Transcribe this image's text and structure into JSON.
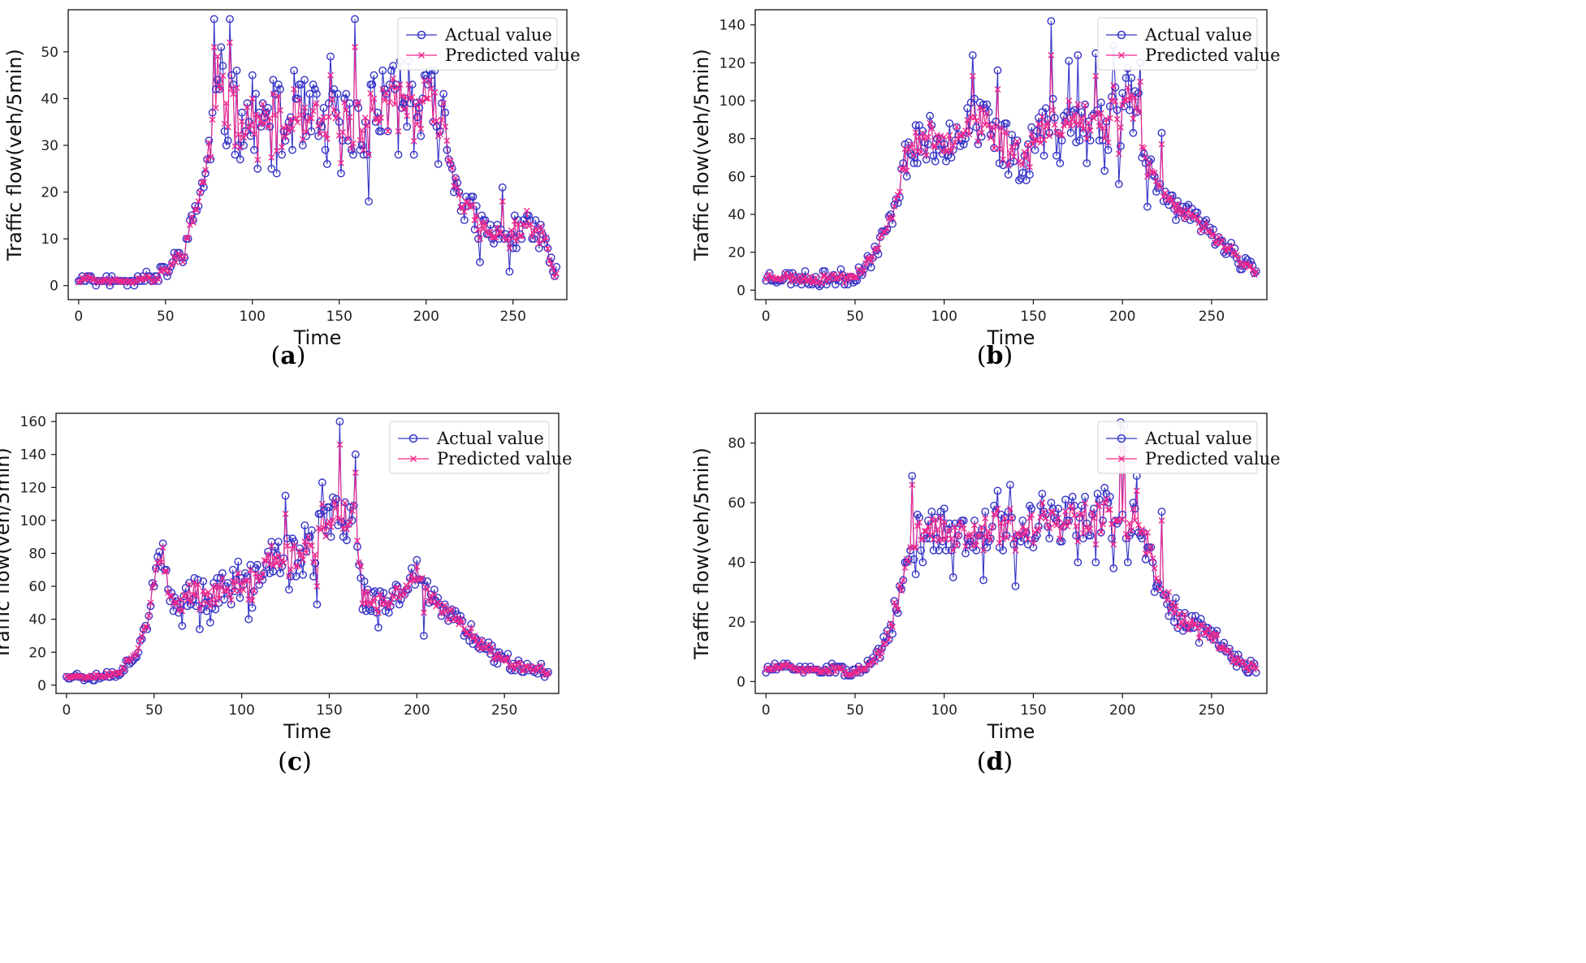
{
  "figure": {
    "legend_actual": "Actual value",
    "legend_predicted": "Predicted value",
    "colors": {
      "actual": "#3535c8",
      "predicted": "#f0288c"
    }
  },
  "chart_data": [
    {
      "id": "a",
      "type": "line",
      "caption_label": "a",
      "xlabel": "Time",
      "ylabel": "Traffic flow(veh/5min)",
      "xlim": [
        -6,
        281
      ],
      "ylim": [
        -3,
        59
      ],
      "xticks": [
        0,
        50,
        100,
        150,
        200,
        250
      ],
      "yticks": [
        0,
        10,
        20,
        30,
        40,
        50
      ],
      "legend_position": "top-right",
      "anchors": [
        [
          0,
          1
        ],
        [
          5,
          2
        ],
        [
          10,
          1
        ],
        [
          20,
          1
        ],
        [
          30,
          1
        ],
        [
          40,
          2
        ],
        [
          43,
          0.5
        ],
        [
          46,
          2
        ],
        [
          50,
          3
        ],
        [
          55,
          5
        ],
        [
          60,
          7
        ],
        [
          65,
          13
        ],
        [
          70,
          20
        ],
        [
          74,
          26
        ],
        [
          77,
          33
        ],
        [
          79,
          38
        ],
        [
          85,
          38
        ],
        [
          95,
          36
        ],
        [
          105,
          34
        ],
        [
          115,
          33
        ],
        [
          130,
          34
        ],
        [
          150,
          33
        ],
        [
          170,
          37
        ],
        [
          190,
          38
        ],
        [
          205,
          37
        ],
        [
          210,
          35
        ],
        [
          213,
          28
        ],
        [
          220,
          19
        ],
        [
          230,
          13
        ],
        [
          240,
          10
        ],
        [
          250,
          11
        ],
        [
          260,
          12
        ],
        [
          268,
          11
        ],
        [
          272,
          4
        ],
        [
          275,
          2
        ]
      ],
      "noise_amp": [
        [
          0,
          0.5
        ],
        [
          40,
          0.6
        ],
        [
          50,
          1.5
        ],
        [
          74,
          2.5
        ],
        [
          78,
          7
        ],
        [
          205,
          7
        ],
        [
          213,
          3
        ],
        [
          240,
          3
        ],
        [
          275,
          1.5
        ]
      ],
      "pred_factor": 0.55,
      "seed": 11,
      "spikes": [
        [
          78,
          57,
          51
        ],
        [
          80,
          44,
          49
        ],
        [
          82,
          51,
          42
        ],
        [
          85,
          30,
          39
        ],
        [
          87,
          57,
          52
        ],
        [
          89,
          43,
          41
        ],
        [
          100,
          45,
          40
        ],
        [
          112,
          44,
          41
        ],
        [
          124,
          46,
          42
        ],
        [
          145,
          49,
          45
        ],
        [
          159,
          57,
          51
        ],
        [
          167,
          18,
          28
        ],
        [
          170,
          45,
          40
        ],
        [
          175,
          46,
          42
        ],
        [
          185,
          48,
          43
        ],
        [
          190,
          48,
          43
        ],
        [
          200,
          45,
          40
        ],
        [
          207,
          26,
          32
        ],
        [
          210,
          41,
          39
        ],
        [
          231,
          5,
          10
        ],
        [
          244,
          21,
          18
        ],
        [
          248,
          3,
          8
        ],
        [
          258,
          15,
          16
        ],
        [
          265,
          8,
          9
        ]
      ]
    },
    {
      "id": "b",
      "type": "line",
      "caption_label": "b",
      "xlabel": "Time",
      "ylabel": "Traffic flow(veh/5min)",
      "xlim": [
        -6,
        281
      ],
      "ylim": [
        -5,
        148
      ],
      "xticks": [
        0,
        50,
        100,
        150,
        200,
        250
      ],
      "yticks": [
        0,
        20,
        40,
        60,
        80,
        100,
        120,
        140
      ],
      "legend_position": "top-right",
      "anchors": [
        [
          0,
          7
        ],
        [
          10,
          7
        ],
        [
          20,
          6
        ],
        [
          30,
          6
        ],
        [
          40,
          7
        ],
        [
          45,
          6
        ],
        [
          50,
          8
        ],
        [
          55,
          12
        ],
        [
          60,
          18
        ],
        [
          65,
          27
        ],
        [
          70,
          37
        ],
        [
          75,
          57
        ],
        [
          80,
          75
        ],
        [
          85,
          78
        ],
        [
          100,
          80
        ],
        [
          115,
          88
        ],
        [
          125,
          85
        ],
        [
          135,
          76
        ],
        [
          145,
          72
        ],
        [
          155,
          82
        ],
        [
          165,
          90
        ],
        [
          175,
          90
        ],
        [
          185,
          88
        ],
        [
          195,
          90
        ],
        [
          205,
          100
        ],
        [
          210,
          90
        ],
        [
          215,
          62
        ],
        [
          220,
          58
        ],
        [
          225,
          50
        ],
        [
          230,
          43
        ],
        [
          240,
          37
        ],
        [
          250,
          30
        ],
        [
          260,
          22
        ],
        [
          270,
          12
        ],
        [
          275,
          8
        ]
      ],
      "noise_amp": [
        [
          0,
          2.5
        ],
        [
          50,
          3
        ],
        [
          70,
          4
        ],
        [
          80,
          9
        ],
        [
          210,
          14
        ],
        [
          220,
          5
        ],
        [
          275,
          3
        ]
      ],
      "pred_factor": 0.5,
      "seed": 23,
      "spikes": [
        [
          116,
          124,
          113
        ],
        [
          130,
          116,
          106
        ],
        [
          160,
          142,
          124
        ],
        [
          165,
          67,
          82
        ],
        [
          170,
          121,
          100
        ],
        [
          175,
          124,
          98
        ],
        [
          180,
          67,
          80
        ],
        [
          185,
          125,
          113
        ],
        [
          190,
          63,
          80
        ],
        [
          195,
          129,
          108
        ],
        [
          198,
          56,
          72
        ],
        [
          203,
          117,
          107
        ],
        [
          205,
          112,
          103
        ],
        [
          210,
          120,
          110
        ],
        [
          212,
          72,
          75
        ],
        [
          214,
          44,
          60
        ],
        [
          222,
          83,
          77
        ]
      ]
    },
    {
      "id": "c",
      "type": "line",
      "caption_label": "c",
      "xlabel": "Time",
      "ylabel": "Traffic flow(veh/5min)",
      "xlim": [
        -6,
        281
      ],
      "ylim": [
        -5,
        165
      ],
      "xticks": [
        0,
        50,
        100,
        150,
        200,
        250
      ],
      "yticks": [
        0,
        20,
        40,
        60,
        80,
        100,
        120,
        140,
        160
      ],
      "legend_position": "top-right",
      "anchors": [
        [
          0,
          6
        ],
        [
          10,
          5
        ],
        [
          20,
          6
        ],
        [
          25,
          6
        ],
        [
          30,
          9
        ],
        [
          35,
          13
        ],
        [
          40,
          22
        ],
        [
          45,
          35
        ],
        [
          48,
          50
        ],
        [
          52,
          72
        ],
        [
          55,
          78
        ],
        [
          58,
          55
        ],
        [
          62,
          50
        ],
        [
          70,
          58
        ],
        [
          80,
          55
        ],
        [
          90,
          58
        ],
        [
          100,
          60
        ],
        [
          110,
          60
        ],
        [
          113,
          80
        ],
        [
          120,
          75
        ],
        [
          130,
          80
        ],
        [
          140,
          80
        ],
        [
          145,
          90
        ],
        [
          150,
          95
        ],
        [
          155,
          110
        ],
        [
          160,
          100
        ],
        [
          165,
          110
        ],
        [
          168,
          55
        ],
        [
          175,
          50
        ],
        [
          185,
          50
        ],
        [
          195,
          60
        ],
        [
          200,
          68
        ],
        [
          205,
          58
        ],
        [
          210,
          48
        ],
        [
          220,
          42
        ],
        [
          230,
          33
        ],
        [
          240,
          22
        ],
        [
          250,
          15
        ],
        [
          260,
          12
        ],
        [
          270,
          10
        ],
        [
          275,
          5
        ]
      ],
      "noise_amp": [
        [
          0,
          1.5
        ],
        [
          25,
          2
        ],
        [
          40,
          4
        ],
        [
          55,
          6
        ],
        [
          100,
          9
        ],
        [
          150,
          14
        ],
        [
          168,
          7
        ],
        [
          220,
          5
        ],
        [
          275,
          2.5
        ]
      ],
      "pred_factor": 0.55,
      "seed": 37,
      "spikes": [
        [
          66,
          36,
          45
        ],
        [
          76,
          34,
          46
        ],
        [
          82,
          38,
          48
        ],
        [
          98,
          75,
          68
        ],
        [
          104,
          40,
          52
        ],
        [
          125,
          115,
          104
        ],
        [
          127,
          58,
          66
        ],
        [
          143,
          49,
          60
        ],
        [
          146,
          123,
          110
        ],
        [
          152,
          114,
          100
        ],
        [
          156,
          160,
          146
        ],
        [
          158,
          90,
          95
        ],
        [
          162,
          108,
          99
        ],
        [
          165,
          140,
          129
        ],
        [
          168,
          65,
          72
        ],
        [
          178,
          35,
          44
        ],
        [
          200,
          76,
          72
        ],
        [
          204,
          30,
          44
        ],
        [
          210,
          58,
          55
        ]
      ]
    },
    {
      "id": "d",
      "type": "line",
      "caption_label": "d",
      "xlabel": "Time",
      "ylabel": "Traffic flow(veh/5min)",
      "xlim": [
        -6,
        281
      ],
      "ylim": [
        -4,
        90
      ],
      "xticks": [
        0,
        50,
        100,
        150,
        200,
        250
      ],
      "yticks": [
        0,
        20,
        40,
        60,
        80
      ],
      "legend_position": "top-right",
      "anchors": [
        [
          0,
          4
        ],
        [
          10,
          5
        ],
        [
          20,
          4
        ],
        [
          30,
          4
        ],
        [
          40,
          4
        ],
        [
          50,
          3
        ],
        [
          55,
          4
        ],
        [
          60,
          6
        ],
        [
          65,
          10
        ],
        [
          70,
          18
        ],
        [
          75,
          30
        ],
        [
          80,
          42
        ],
        [
          85,
          50
        ],
        [
          95,
          51
        ],
        [
          110,
          50
        ],
        [
          125,
          52
        ],
        [
          140,
          50
        ],
        [
          155,
          53
        ],
        [
          170,
          54
        ],
        [
          185,
          55
        ],
        [
          195,
          55
        ],
        [
          205,
          55
        ],
        [
          212,
          50
        ],
        [
          217,
          40
        ],
        [
          222,
          30
        ],
        [
          228,
          24
        ],
        [
          235,
          20
        ],
        [
          245,
          17
        ],
        [
          255,
          12
        ],
        [
          265,
          7
        ],
        [
          272,
          5
        ],
        [
          275,
          5
        ]
      ],
      "noise_amp": [
        [
          0,
          1
        ],
        [
          55,
          1.2
        ],
        [
          70,
          3
        ],
        [
          85,
          5
        ],
        [
          210,
          6
        ],
        [
          222,
          4
        ],
        [
          275,
          2
        ]
      ],
      "pred_factor": 0.6,
      "seed": 51,
      "spikes": [
        [
          82,
          69,
          66
        ],
        [
          84,
          36,
          45
        ],
        [
          88,
          40,
          48
        ],
        [
          105,
          35,
          44
        ],
        [
          122,
          34,
          44
        ],
        [
          130,
          64,
          58
        ],
        [
          137,
          66,
          58
        ],
        [
          140,
          32,
          44
        ],
        [
          155,
          63,
          60
        ],
        [
          175,
          40,
          47
        ],
        [
          185,
          40,
          46
        ],
        [
          190,
          65,
          60
        ],
        [
          195,
          38,
          46
        ],
        [
          199,
          87,
          79
        ],
        [
          201,
          86,
          78
        ],
        [
          203,
          40,
          48
        ],
        [
          208,
          69,
          64
        ],
        [
          214,
          45,
          50
        ],
        [
          218,
          30,
          38
        ],
        [
          222,
          57,
          54
        ],
        [
          226,
          22,
          30
        ]
      ]
    }
  ]
}
